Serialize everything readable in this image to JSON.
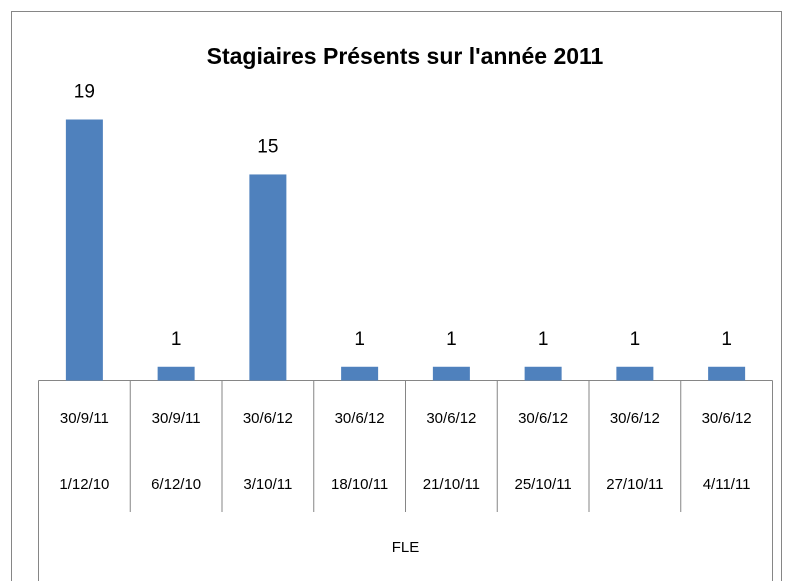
{
  "chart_data": {
    "type": "bar",
    "title": "Stagiaires Présents sur l'année 2011",
    "categories": [
      "30/9/11",
      "30/9/11",
      "30/6/12",
      "30/6/12",
      "30/6/12",
      "30/6/12",
      "30/6/12",
      "30/6/12"
    ],
    "subcategories": [
      "1/12/10",
      "6/12/10",
      "3/10/11",
      "18/10/11",
      "21/10/11",
      "25/10/11",
      "27/10/11",
      "4/11/11"
    ],
    "group": "FLE",
    "values": [
      19,
      1,
      15,
      1,
      1,
      1,
      1,
      1
    ],
    "color": "#4f81bd"
  }
}
